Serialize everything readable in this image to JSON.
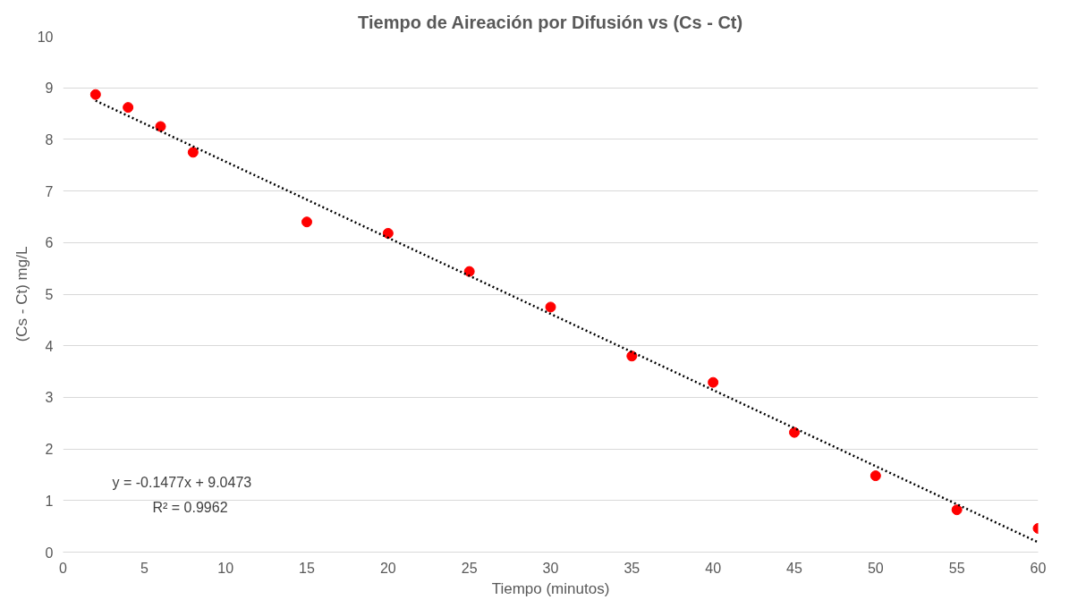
{
  "chart_data": {
    "type": "scatter",
    "title": "Tiempo de Aireación por Difusión vs (Cs - Ct)",
    "xlabel": "Tiempo (minutos)",
    "ylabel": "(Cs - Ct) mg/L",
    "x": [
      2,
      4,
      6,
      8,
      15,
      20,
      25,
      30,
      35,
      40,
      45,
      50,
      55,
      60
    ],
    "series": [
      {
        "color": "#ff0000",
        "marker": "circle",
        "values": [
          8.87,
          8.62,
          8.25,
          7.75,
          6.4,
          6.18,
          5.44,
          4.75,
          3.8,
          3.29,
          2.32,
          1.48,
          0.82,
          0.46
        ]
      },
      {
        "type": "line",
        "color": "#000000",
        "line_style": "dotted",
        "x": [
          2,
          60
        ],
        "values": [
          8.75,
          0.19
        ]
      }
    ],
    "xlim": [
      0,
      60
    ],
    "ylim": [
      0,
      10
    ],
    "xticks": [
      0,
      5,
      10,
      15,
      20,
      25,
      30,
      35,
      40,
      45,
      50,
      55,
      60
    ],
    "yticks": [
      0,
      1,
      2,
      3,
      4,
      5,
      6,
      7,
      8,
      9,
      10
    ],
    "grid": "y",
    "annotations": [
      "y = -0.1477x + 9.0473",
      "R² = 0.9962"
    ]
  }
}
